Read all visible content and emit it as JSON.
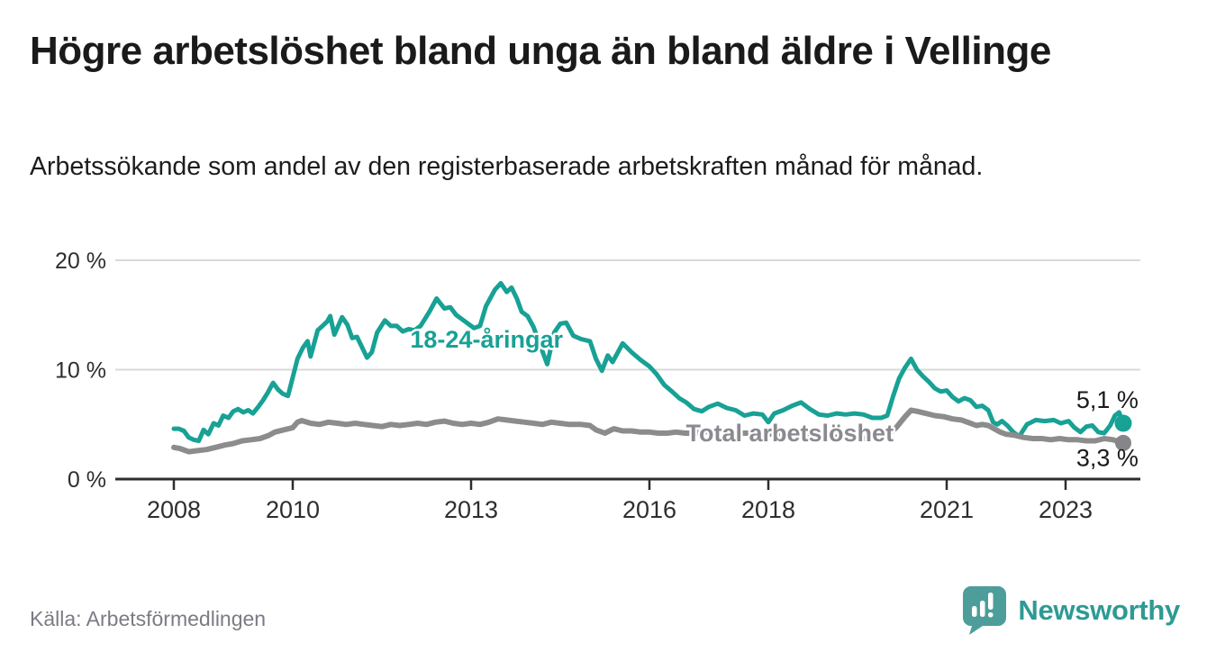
{
  "header": {
    "title": "Högre arbetslöshet bland unga än bland äldre i Vellinge",
    "subtitle": "Arbetssökande som andel av den registerbaserade arbetskraften månad för månad."
  },
  "footer": {
    "source": "Källa: Arbetsförmedlingen",
    "brand": "Newsworthy"
  },
  "colors": {
    "youth_line": "#18a195",
    "total_line": "#8c8c8c",
    "total_label": "#8a8a90",
    "axis": "#2d2d2d",
    "grid": "#d9d9d9",
    "brand_teal": "#2e9a94",
    "brand_bubble": "#4d9e9a"
  },
  "chart_data": {
    "type": "line",
    "title": "Högre arbetslöshet bland unga än bland äldre i Vellinge",
    "subtitle": "Arbetssökande som andel av den registerbaserade arbetskraften månad för månad.",
    "source": "Källa: Arbetsförmedlingen",
    "x_unit": "year (monthly data, Jan 2008 – late 2023)",
    "y_unit": "%",
    "xlim": [
      2008,
      2024.3
    ],
    "ylim": [
      0,
      20
    ],
    "grid": "horizontal",
    "legend": "inline series labels",
    "style": {
      "axis_color": "#2d2d2d",
      "grid_color": "#d9d9d9"
    },
    "y_ticks": [
      {
        "value": 0,
        "label": "0 %"
      },
      {
        "value": 10,
        "label": "10 %"
      },
      {
        "value": 20,
        "label": "20 %"
      }
    ],
    "x_ticks": [
      {
        "year": 2008,
        "label": "2008"
      },
      {
        "year": 2010,
        "label": "2010"
      },
      {
        "year": 2013,
        "label": "2013"
      },
      {
        "year": 2016,
        "label": "2016"
      },
      {
        "year": 2018,
        "label": "2018"
      },
      {
        "year": 2021,
        "label": "2021"
      },
      {
        "year": 2023,
        "label": "2023"
      }
    ],
    "series": [
      {
        "name": "18-24-åringar",
        "slug": "youth",
        "color": "#18a195",
        "width": 5,
        "dot_radius": 9.5,
        "dot_color": "#18a195",
        "last_value_label": "5,1 %",
        "points": [
          [
            2008.0,
            4.6
          ],
          [
            2008.08,
            4.6
          ],
          [
            2008.17,
            4.4
          ],
          [
            2008.25,
            3.8
          ],
          [
            2008.33,
            3.6
          ],
          [
            2008.42,
            3.5
          ],
          [
            2008.5,
            4.5
          ],
          [
            2008.58,
            4.1
          ],
          [
            2008.67,
            5.1
          ],
          [
            2008.75,
            4.9
          ],
          [
            2008.83,
            5.8
          ],
          [
            2008.92,
            5.6
          ],
          [
            2009.0,
            6.2
          ],
          [
            2009.08,
            6.4
          ],
          [
            2009.17,
            6.1
          ],
          [
            2009.25,
            6.3
          ],
          [
            2009.33,
            6.0
          ],
          [
            2009.42,
            6.6
          ],
          [
            2009.5,
            7.2
          ],
          [
            2009.58,
            7.9
          ],
          [
            2009.67,
            8.8
          ],
          [
            2009.75,
            8.2
          ],
          [
            2009.83,
            7.8
          ],
          [
            2009.92,
            7.6
          ],
          [
            2010.0,
            9.3
          ],
          [
            2010.08,
            11.0
          ],
          [
            2010.17,
            12.0
          ],
          [
            2010.25,
            12.6
          ],
          [
            2010.3,
            11.2
          ],
          [
            2010.42,
            13.6
          ],
          [
            2010.5,
            14.0
          ],
          [
            2010.58,
            14.4
          ],
          [
            2010.63,
            14.9
          ],
          [
            2010.7,
            13.2
          ],
          [
            2010.83,
            14.8
          ],
          [
            2010.92,
            14.1
          ],
          [
            2011.0,
            12.9
          ],
          [
            2011.08,
            13.0
          ],
          [
            2011.17,
            12.0
          ],
          [
            2011.25,
            11.1
          ],
          [
            2011.33,
            11.6
          ],
          [
            2011.42,
            13.4
          ],
          [
            2011.55,
            14.5
          ],
          [
            2011.65,
            14.0
          ],
          [
            2011.75,
            14.0
          ],
          [
            2011.85,
            13.5
          ],
          [
            2011.95,
            13.7
          ],
          [
            2012.05,
            13.6
          ],
          [
            2012.15,
            14.0
          ],
          [
            2012.3,
            15.3
          ],
          [
            2012.42,
            16.5
          ],
          [
            2012.55,
            15.6
          ],
          [
            2012.65,
            15.7
          ],
          [
            2012.75,
            15.0
          ],
          [
            2012.85,
            14.6
          ],
          [
            2012.95,
            14.2
          ],
          [
            2013.05,
            13.8
          ],
          [
            2013.15,
            14.0
          ],
          [
            2013.25,
            15.8
          ],
          [
            2013.4,
            17.3
          ],
          [
            2013.5,
            17.9
          ],
          [
            2013.6,
            17.1
          ],
          [
            2013.68,
            17.5
          ],
          [
            2013.77,
            16.5
          ],
          [
            2013.85,
            15.3
          ],
          [
            2013.95,
            14.9
          ],
          [
            2014.05,
            13.9
          ],
          [
            2014.15,
            12.4
          ],
          [
            2014.28,
            10.5
          ],
          [
            2014.4,
            13.4
          ],
          [
            2014.5,
            14.2
          ],
          [
            2014.6,
            14.3
          ],
          [
            2014.72,
            13.1
          ],
          [
            2014.85,
            12.8
          ],
          [
            2015.0,
            12.6
          ],
          [
            2015.1,
            11.0
          ],
          [
            2015.2,
            9.9
          ],
          [
            2015.3,
            11.3
          ],
          [
            2015.38,
            10.7
          ],
          [
            2015.55,
            12.4
          ],
          [
            2015.7,
            11.6
          ],
          [
            2015.85,
            10.9
          ],
          [
            2016.0,
            10.3
          ],
          [
            2016.12,
            9.6
          ],
          [
            2016.25,
            8.6
          ],
          [
            2016.38,
            8.0
          ],
          [
            2016.5,
            7.4
          ],
          [
            2016.62,
            7.0
          ],
          [
            2016.75,
            6.4
          ],
          [
            2016.88,
            6.2
          ],
          [
            2017.0,
            6.6
          ],
          [
            2017.15,
            6.9
          ],
          [
            2017.3,
            6.5
          ],
          [
            2017.45,
            6.3
          ],
          [
            2017.6,
            5.8
          ],
          [
            2017.75,
            6.0
          ],
          [
            2017.9,
            5.9
          ],
          [
            2018.0,
            5.2
          ],
          [
            2018.1,
            6.0
          ],
          [
            2018.25,
            6.3
          ],
          [
            2018.4,
            6.7
          ],
          [
            2018.55,
            7.0
          ],
          [
            2018.7,
            6.4
          ],
          [
            2018.85,
            5.9
          ],
          [
            2019.0,
            5.8
          ],
          [
            2019.15,
            6.0
          ],
          [
            2019.3,
            5.9
          ],
          [
            2019.45,
            6.0
          ],
          [
            2019.6,
            5.9
          ],
          [
            2019.75,
            5.6
          ],
          [
            2019.9,
            5.6
          ],
          [
            2020.0,
            5.8
          ],
          [
            2020.1,
            7.6
          ],
          [
            2020.2,
            9.2
          ],
          [
            2020.3,
            10.2
          ],
          [
            2020.4,
            11.0
          ],
          [
            2020.5,
            10.0
          ],
          [
            2020.6,
            9.4
          ],
          [
            2020.7,
            8.9
          ],
          [
            2020.8,
            8.3
          ],
          [
            2020.9,
            8.0
          ],
          [
            2021.0,
            8.1
          ],
          [
            2021.1,
            7.5
          ],
          [
            2021.2,
            7.1
          ],
          [
            2021.3,
            7.4
          ],
          [
            2021.4,
            7.2
          ],
          [
            2021.5,
            6.6
          ],
          [
            2021.6,
            6.7
          ],
          [
            2021.7,
            6.3
          ],
          [
            2021.78,
            5.2
          ],
          [
            2021.85,
            5.0
          ],
          [
            2021.93,
            5.3
          ],
          [
            2022.02,
            4.9
          ],
          [
            2022.12,
            4.3
          ],
          [
            2022.22,
            3.9
          ],
          [
            2022.35,
            5.0
          ],
          [
            2022.5,
            5.4
          ],
          [
            2022.65,
            5.3
          ],
          [
            2022.8,
            5.4
          ],
          [
            2022.92,
            5.1
          ],
          [
            2023.05,
            5.3
          ],
          [
            2023.15,
            4.7
          ],
          [
            2023.25,
            4.3
          ],
          [
            2023.35,
            4.8
          ],
          [
            2023.45,
            4.9
          ],
          [
            2023.55,
            4.3
          ],
          [
            2023.65,
            4.2
          ],
          [
            2023.75,
            4.9
          ],
          [
            2023.83,
            5.8
          ],
          [
            2023.9,
            6.1
          ],
          [
            2023.97,
            5.1
          ]
        ]
      },
      {
        "name": "Total arbetslöshet",
        "slug": "total",
        "color": "#8c8c8c",
        "width": 6,
        "dot_radius": 9,
        "dot_color": "#85858a",
        "last_value_label": "3,3 %",
        "points": [
          [
            2008.0,
            2.9
          ],
          [
            2008.1,
            2.8
          ],
          [
            2008.25,
            2.5
          ],
          [
            2008.4,
            2.6
          ],
          [
            2008.55,
            2.7
          ],
          [
            2008.7,
            2.9
          ],
          [
            2008.85,
            3.1
          ],
          [
            2009.0,
            3.25
          ],
          [
            2009.15,
            3.5
          ],
          [
            2009.3,
            3.6
          ],
          [
            2009.45,
            3.7
          ],
          [
            2009.6,
            4.0
          ],
          [
            2009.7,
            4.3
          ],
          [
            2009.85,
            4.5
          ],
          [
            2010.0,
            4.7
          ],
          [
            2010.08,
            5.2
          ],
          [
            2010.15,
            5.35
          ],
          [
            2010.3,
            5.1
          ],
          [
            2010.45,
            5.0
          ],
          [
            2010.6,
            5.2
          ],
          [
            2010.75,
            5.1
          ],
          [
            2010.9,
            5.0
          ],
          [
            2011.05,
            5.1
          ],
          [
            2011.2,
            5.0
          ],
          [
            2011.35,
            4.9
          ],
          [
            2011.5,
            4.8
          ],
          [
            2011.65,
            5.0
          ],
          [
            2011.8,
            4.9
          ],
          [
            2011.95,
            5.0
          ],
          [
            2012.1,
            5.1
          ],
          [
            2012.25,
            5.0
          ],
          [
            2012.4,
            5.2
          ],
          [
            2012.55,
            5.3
          ],
          [
            2012.7,
            5.1
          ],
          [
            2012.85,
            5.0
          ],
          [
            2013.0,
            5.1
          ],
          [
            2013.15,
            5.0
          ],
          [
            2013.3,
            5.2
          ],
          [
            2013.45,
            5.5
          ],
          [
            2013.6,
            5.4
          ],
          [
            2013.75,
            5.3
          ],
          [
            2013.9,
            5.2
          ],
          [
            2014.05,
            5.1
          ],
          [
            2014.2,
            5.0
          ],
          [
            2014.35,
            5.2
          ],
          [
            2014.5,
            5.1
          ],
          [
            2014.65,
            5.0
          ],
          [
            2014.85,
            5.0
          ],
          [
            2015.0,
            4.9
          ],
          [
            2015.1,
            4.5
          ],
          [
            2015.25,
            4.2
          ],
          [
            2015.4,
            4.6
          ],
          [
            2015.55,
            4.4
          ],
          [
            2015.7,
            4.4
          ],
          [
            2015.85,
            4.3
          ],
          [
            2016.0,
            4.3
          ],
          [
            2016.15,
            4.2
          ],
          [
            2016.3,
            4.2
          ],
          [
            2016.45,
            4.3
          ],
          [
            2016.6,
            4.2
          ],
          [
            2016.75,
            4.2
          ],
          [
            2016.9,
            4.3
          ],
          [
            2017.05,
            4.4
          ],
          [
            2017.2,
            4.4
          ],
          [
            2017.4,
            4.3
          ],
          [
            2017.6,
            4.2
          ],
          [
            2017.8,
            4.2
          ],
          [
            2018.0,
            4.1
          ],
          [
            2018.2,
            4.2
          ],
          [
            2018.4,
            4.1
          ],
          [
            2018.6,
            4.0
          ],
          [
            2018.8,
            4.0
          ],
          [
            2019.0,
            3.9
          ],
          [
            2019.2,
            3.8
          ],
          [
            2019.4,
            3.8
          ],
          [
            2019.6,
            3.7
          ],
          [
            2019.8,
            3.8
          ],
          [
            2020.0,
            4.0
          ],
          [
            2020.15,
            4.7
          ],
          [
            2020.3,
            5.7
          ],
          [
            2020.4,
            6.3
          ],
          [
            2020.5,
            6.2
          ],
          [
            2020.65,
            6.0
          ],
          [
            2020.8,
            5.8
          ],
          [
            2020.95,
            5.7
          ],
          [
            2021.1,
            5.5
          ],
          [
            2021.25,
            5.4
          ],
          [
            2021.4,
            5.1
          ],
          [
            2021.5,
            4.9
          ],
          [
            2021.6,
            5.0
          ],
          [
            2021.7,
            4.9
          ],
          [
            2021.8,
            4.6
          ],
          [
            2021.9,
            4.3
          ],
          [
            2022.0,
            4.1
          ],
          [
            2022.15,
            4.0
          ],
          [
            2022.3,
            3.8
          ],
          [
            2022.45,
            3.7
          ],
          [
            2022.6,
            3.7
          ],
          [
            2022.75,
            3.6
          ],
          [
            2022.9,
            3.7
          ],
          [
            2023.05,
            3.6
          ],
          [
            2023.2,
            3.6
          ],
          [
            2023.35,
            3.5
          ],
          [
            2023.5,
            3.5
          ],
          [
            2023.65,
            3.7
          ],
          [
            2023.8,
            3.6
          ],
          [
            2023.9,
            3.4
          ],
          [
            2023.97,
            3.3
          ]
        ]
      }
    ],
    "annotations": [
      {
        "name": "series-label-youth",
        "text": "18-24-åringar",
        "color": "#18a195",
        "x": 2013.26,
        "y": 12.76,
        "anchor": "middle",
        "bold": true
      },
      {
        "name": "series-label-total",
        "text": "Total arbetslöshet",
        "color": "#8a8a90",
        "x": 2018.36,
        "y": 4.2,
        "anchor": "middle",
        "bold": true
      },
      {
        "name": "end-value-youth",
        "text": "5,1 %",
        "color": "#1a1a1a",
        "x": 2023.18,
        "y": 7.25,
        "anchor": "start",
        "bold": false
      },
      {
        "name": "end-value-total",
        "text": "3,3 %",
        "color": "#1a1a1a",
        "x": 2023.18,
        "y": 1.92,
        "anchor": "start",
        "bold": false
      }
    ]
  }
}
